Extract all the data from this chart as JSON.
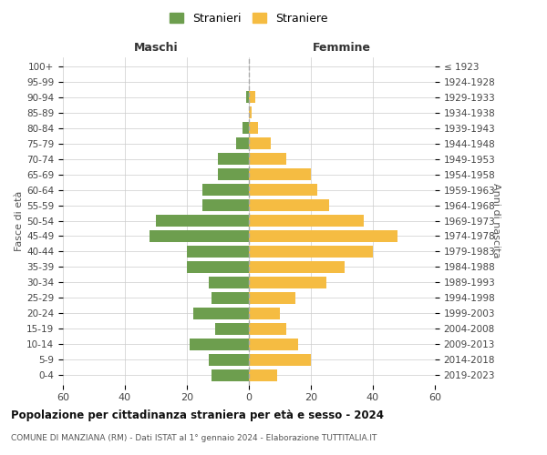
{
  "age_groups": [
    "0-4",
    "5-9",
    "10-14",
    "15-19",
    "20-24",
    "25-29",
    "30-34",
    "35-39",
    "40-44",
    "45-49",
    "50-54",
    "55-59",
    "60-64",
    "65-69",
    "70-74",
    "75-79",
    "80-84",
    "85-89",
    "90-94",
    "95-99",
    "100+"
  ],
  "birth_years": [
    "2019-2023",
    "2014-2018",
    "2009-2013",
    "2004-2008",
    "1999-2003",
    "1994-1998",
    "1989-1993",
    "1984-1988",
    "1979-1983",
    "1974-1978",
    "1969-1973",
    "1964-1968",
    "1959-1963",
    "1954-1958",
    "1949-1953",
    "1944-1948",
    "1939-1943",
    "1934-1938",
    "1929-1933",
    "1924-1928",
    "≤ 1923"
  ],
  "males": [
    12,
    13,
    19,
    11,
    18,
    12,
    13,
    20,
    20,
    32,
    30,
    15,
    15,
    10,
    10,
    4,
    2,
    0,
    1,
    0,
    0
  ],
  "females": [
    9,
    20,
    16,
    12,
    10,
    15,
    25,
    31,
    40,
    48,
    37,
    26,
    22,
    20,
    12,
    7,
    3,
    1,
    2,
    0,
    0
  ],
  "male_color": "#6d9e4e",
  "female_color": "#f5bc42",
  "bg_color": "#ffffff",
  "grid_color": "#cccccc",
  "title": "Popolazione per cittadinanza straniera per età e sesso - 2024",
  "subtitle": "COMUNE DI MANZIANA (RM) - Dati ISTAT al 1° gennaio 2024 - Elaborazione TUTTITALIA.IT",
  "xlabel_left": "Maschi",
  "xlabel_right": "Femmine",
  "ylabel_left": "Fasce di età",
  "ylabel_right": "Anni di nascita",
  "legend_male": "Stranieri",
  "legend_female": "Straniere",
  "xlim": 60,
  "dashed_line_color": "#aaaaaa"
}
